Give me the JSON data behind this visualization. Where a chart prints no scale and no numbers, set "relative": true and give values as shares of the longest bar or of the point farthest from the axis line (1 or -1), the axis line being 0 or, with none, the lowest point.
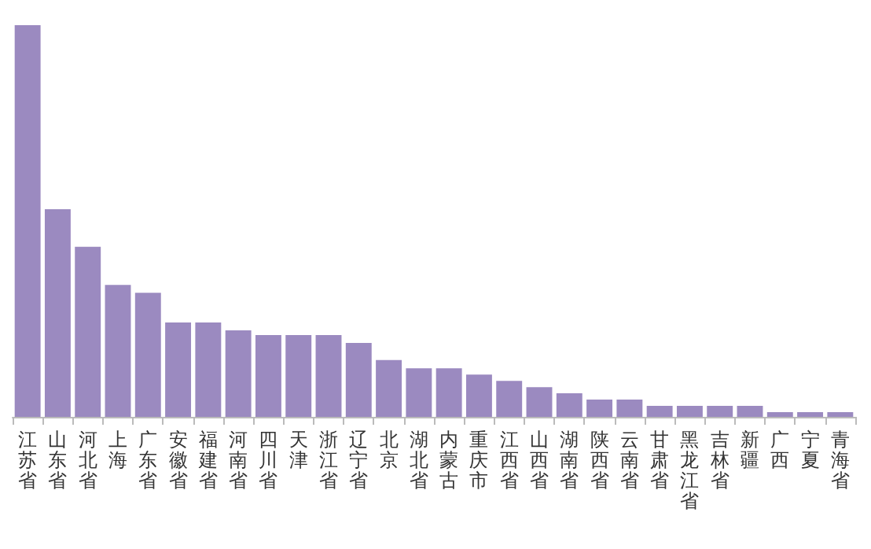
{
  "chart_data": {
    "type": "bar",
    "relative": true,
    "categories": [
      "江苏省",
      "山东省",
      "河北省",
      "上海",
      "广东省",
      "安徽省",
      "福建省",
      "河南省",
      "四川省",
      "天津",
      "浙江省",
      "辽宁省",
      "北京",
      "湖北省",
      "内蒙古",
      "重庆市",
      "江西省",
      "山西省",
      "湖南省",
      "陕西省",
      "云南省",
      "甘肃省",
      "黑龙江省",
      "吉林省",
      "新疆",
      "广西",
      "宁夏",
      "青海省"
    ],
    "values": [
      1,
      0.53,
      0.434,
      0.337,
      0.317,
      0.241,
      0.241,
      0.221,
      0.209,
      0.209,
      0.209,
      0.189,
      0.145,
      0.124,
      0.124,
      0.108,
      0.092,
      0.076,
      0.06,
      0.044,
      0.044,
      0.028,
      0.028,
      0.028,
      0.028,
      0.012,
      0.012,
      0.012
    ],
    "color": "#9b8ac0"
  }
}
